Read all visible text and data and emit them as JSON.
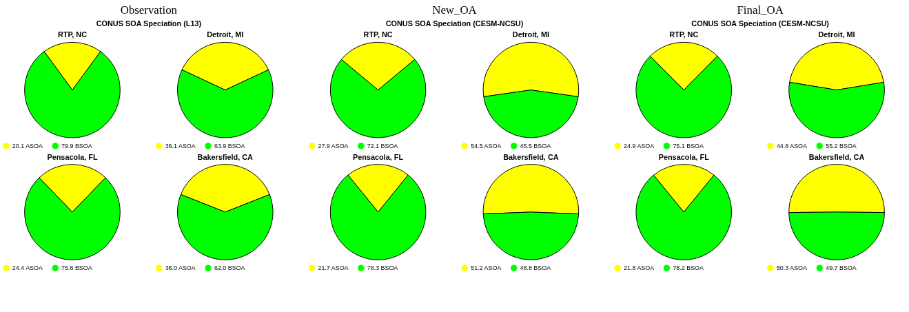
{
  "chart_data": [
    {
      "type": "pie",
      "title": "RTP, NC",
      "annotations": [
        "Observation",
        "CONUS SOA Speciation (L13)"
      ],
      "categories": [
        "20.1 ASOA",
        "79.9 BSOA"
      ],
      "values": [
        20.1,
        79.9
      ],
      "colors": [
        "#ffff00",
        "#00ff00"
      ],
      "legend": "bottom"
    },
    {
      "type": "pie",
      "title": "Detroit, MI",
      "categories": [
        "36.1 ASOA",
        "63.9 BSOA"
      ],
      "values": [
        36.1,
        63.9
      ],
      "colors": [
        "#ffff00",
        "#00ff00"
      ],
      "legend": "bottom"
    },
    {
      "type": "pie",
      "title": "RTP, NC",
      "annotations": [
        "New_OA",
        "CONUS SOA Speciation (CESM-NCSU)"
      ],
      "categories": [
        "27.9 ASOA",
        "72.1 BSOA"
      ],
      "values": [
        27.9,
        72.1
      ],
      "colors": [
        "#ffff00",
        "#00ff00"
      ],
      "legend": "bottom"
    },
    {
      "type": "pie",
      "title": "Detroit, MI",
      "categories": [
        "54.5 ASOA",
        "45.5 BSOA"
      ],
      "values": [
        54.5,
        45.5
      ],
      "colors": [
        "#ffff00",
        "#00ff00"
      ],
      "legend": "bottom"
    },
    {
      "type": "pie",
      "title": "RTP, NC",
      "annotations": [
        "Final_OA",
        "CONUS SOA Speciation (CESM-NCSU)"
      ],
      "categories": [
        "24.9 ASOA",
        "75.1 BSOA"
      ],
      "values": [
        24.9,
        75.1
      ],
      "colors": [
        "#ffff00",
        "#00ff00"
      ],
      "legend": "bottom"
    },
    {
      "type": "pie",
      "title": "Detroit, MI",
      "categories": [
        "44.8 ASOA",
        "55.2 BSOA"
      ],
      "values": [
        44.8,
        55.2
      ],
      "colors": [
        "#ffff00",
        "#00ff00"
      ],
      "legend": "bottom"
    },
    {
      "type": "pie",
      "title": "Pensacola, FL",
      "categories": [
        "24.4 ASOA",
        "75.6 BSOA"
      ],
      "values": [
        24.4,
        75.6
      ],
      "colors": [
        "#ffff00",
        "#00ff00"
      ],
      "legend": "bottom"
    },
    {
      "type": "pie",
      "title": "Bakersfield, CA",
      "categories": [
        "38.0 ASOA",
        "62.0 BSOA"
      ],
      "values": [
        38.0,
        62.0
      ],
      "colors": [
        "#ffff00",
        "#00ff00"
      ],
      "legend": "bottom"
    },
    {
      "type": "pie",
      "title": "Pensacola, FL",
      "categories": [
        "21.7 ASOA",
        "78.3 BSOA"
      ],
      "values": [
        21.7,
        78.3
      ],
      "colors": [
        "#ffff00",
        "#00ff00"
      ],
      "legend": "bottom"
    },
    {
      "type": "pie",
      "title": "Bakersfield, CA",
      "categories": [
        "51.2 ASOA",
        "48.8 BSOA"
      ],
      "values": [
        51.2,
        48.8
      ],
      "colors": [
        "#ffff00",
        "#00ff00"
      ],
      "legend": "bottom"
    },
    {
      "type": "pie",
      "title": "Pensacola, FL",
      "categories": [
        "21.8 ASOA",
        "78.2 BSOA"
      ],
      "values": [
        21.8,
        78.2
      ],
      "colors": [
        "#ffff00",
        "#00ff00"
      ],
      "legend": "bottom"
    },
    {
      "type": "pie",
      "title": "Bakersfield, CA",
      "categories": [
        "50.3 ASOA",
        "49.7 BSOA"
      ],
      "values": [
        50.3,
        49.7
      ],
      "colors": [
        "#ffff00",
        "#00ff00"
      ],
      "legend": "bottom"
    }
  ]
}
